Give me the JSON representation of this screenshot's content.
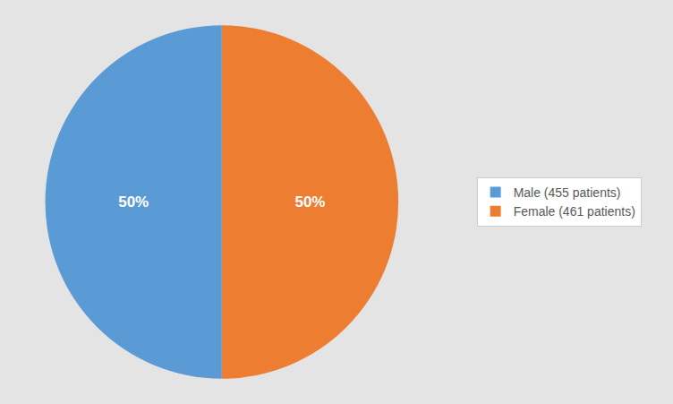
{
  "chart_data": {
    "type": "pie",
    "categories": [
      "Female (461 patients)",
      "Male (455 patients)"
    ],
    "values": [
      50,
      50
    ],
    "value_labels": [
      "50%",
      "50%"
    ],
    "colors": [
      "#ED7D31",
      "#5B9BD5"
    ],
    "data_labels": true,
    "legend": "right"
  }
}
